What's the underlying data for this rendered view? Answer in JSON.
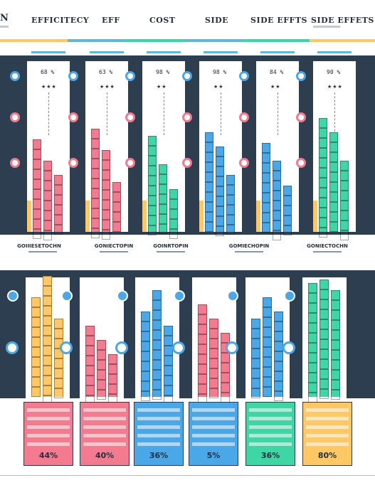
{
  "headers": {
    "n": "N",
    "efficiency": "EFFICITECY",
    "eff": "EFF",
    "cost": "COST",
    "side": "SIDE",
    "side_effts": "SIDE EFFTS",
    "side_effets": "SIDE EFFETS"
  },
  "top_columns": [
    {
      "pct": "68 %",
      "stars": "★★★"
    },
    {
      "pct": "63 %",
      "stars": "★★★"
    },
    {
      "pct": "98 %",
      "stars": "★★"
    },
    {
      "pct": "98 %",
      "stars": "★★"
    },
    {
      "pct": "84 %",
      "stars": "★★"
    },
    {
      "pct": "90 %",
      "stars": "★★★"
    }
  ],
  "mid_labels": [
    "GOIIIESETOCHN",
    "GONIECTOPIN",
    "GOINRTOPIN",
    "GOMIECHOPIN",
    "GONIECTOCHN"
  ],
  "cards": [
    {
      "value": "44%",
      "color": "#f47b8f"
    },
    {
      "value": "40%",
      "color": "#f47b8f"
    },
    {
      "value": "36%",
      "color": "#4aa8e8"
    },
    {
      "value": "5%",
      "color": "#4aa8e8"
    },
    {
      "value": "36%",
      "color": "#3fd6a6"
    },
    {
      "value": "80%",
      "color": "#ffc864"
    }
  ],
  "colors": {
    "navy": "#2c3e50",
    "pink": "#f47b8f",
    "yellow": "#ffc864",
    "blue": "#4aa8e8",
    "green": "#3fd6a6",
    "lightblue": "#5fb8d8"
  }
}
